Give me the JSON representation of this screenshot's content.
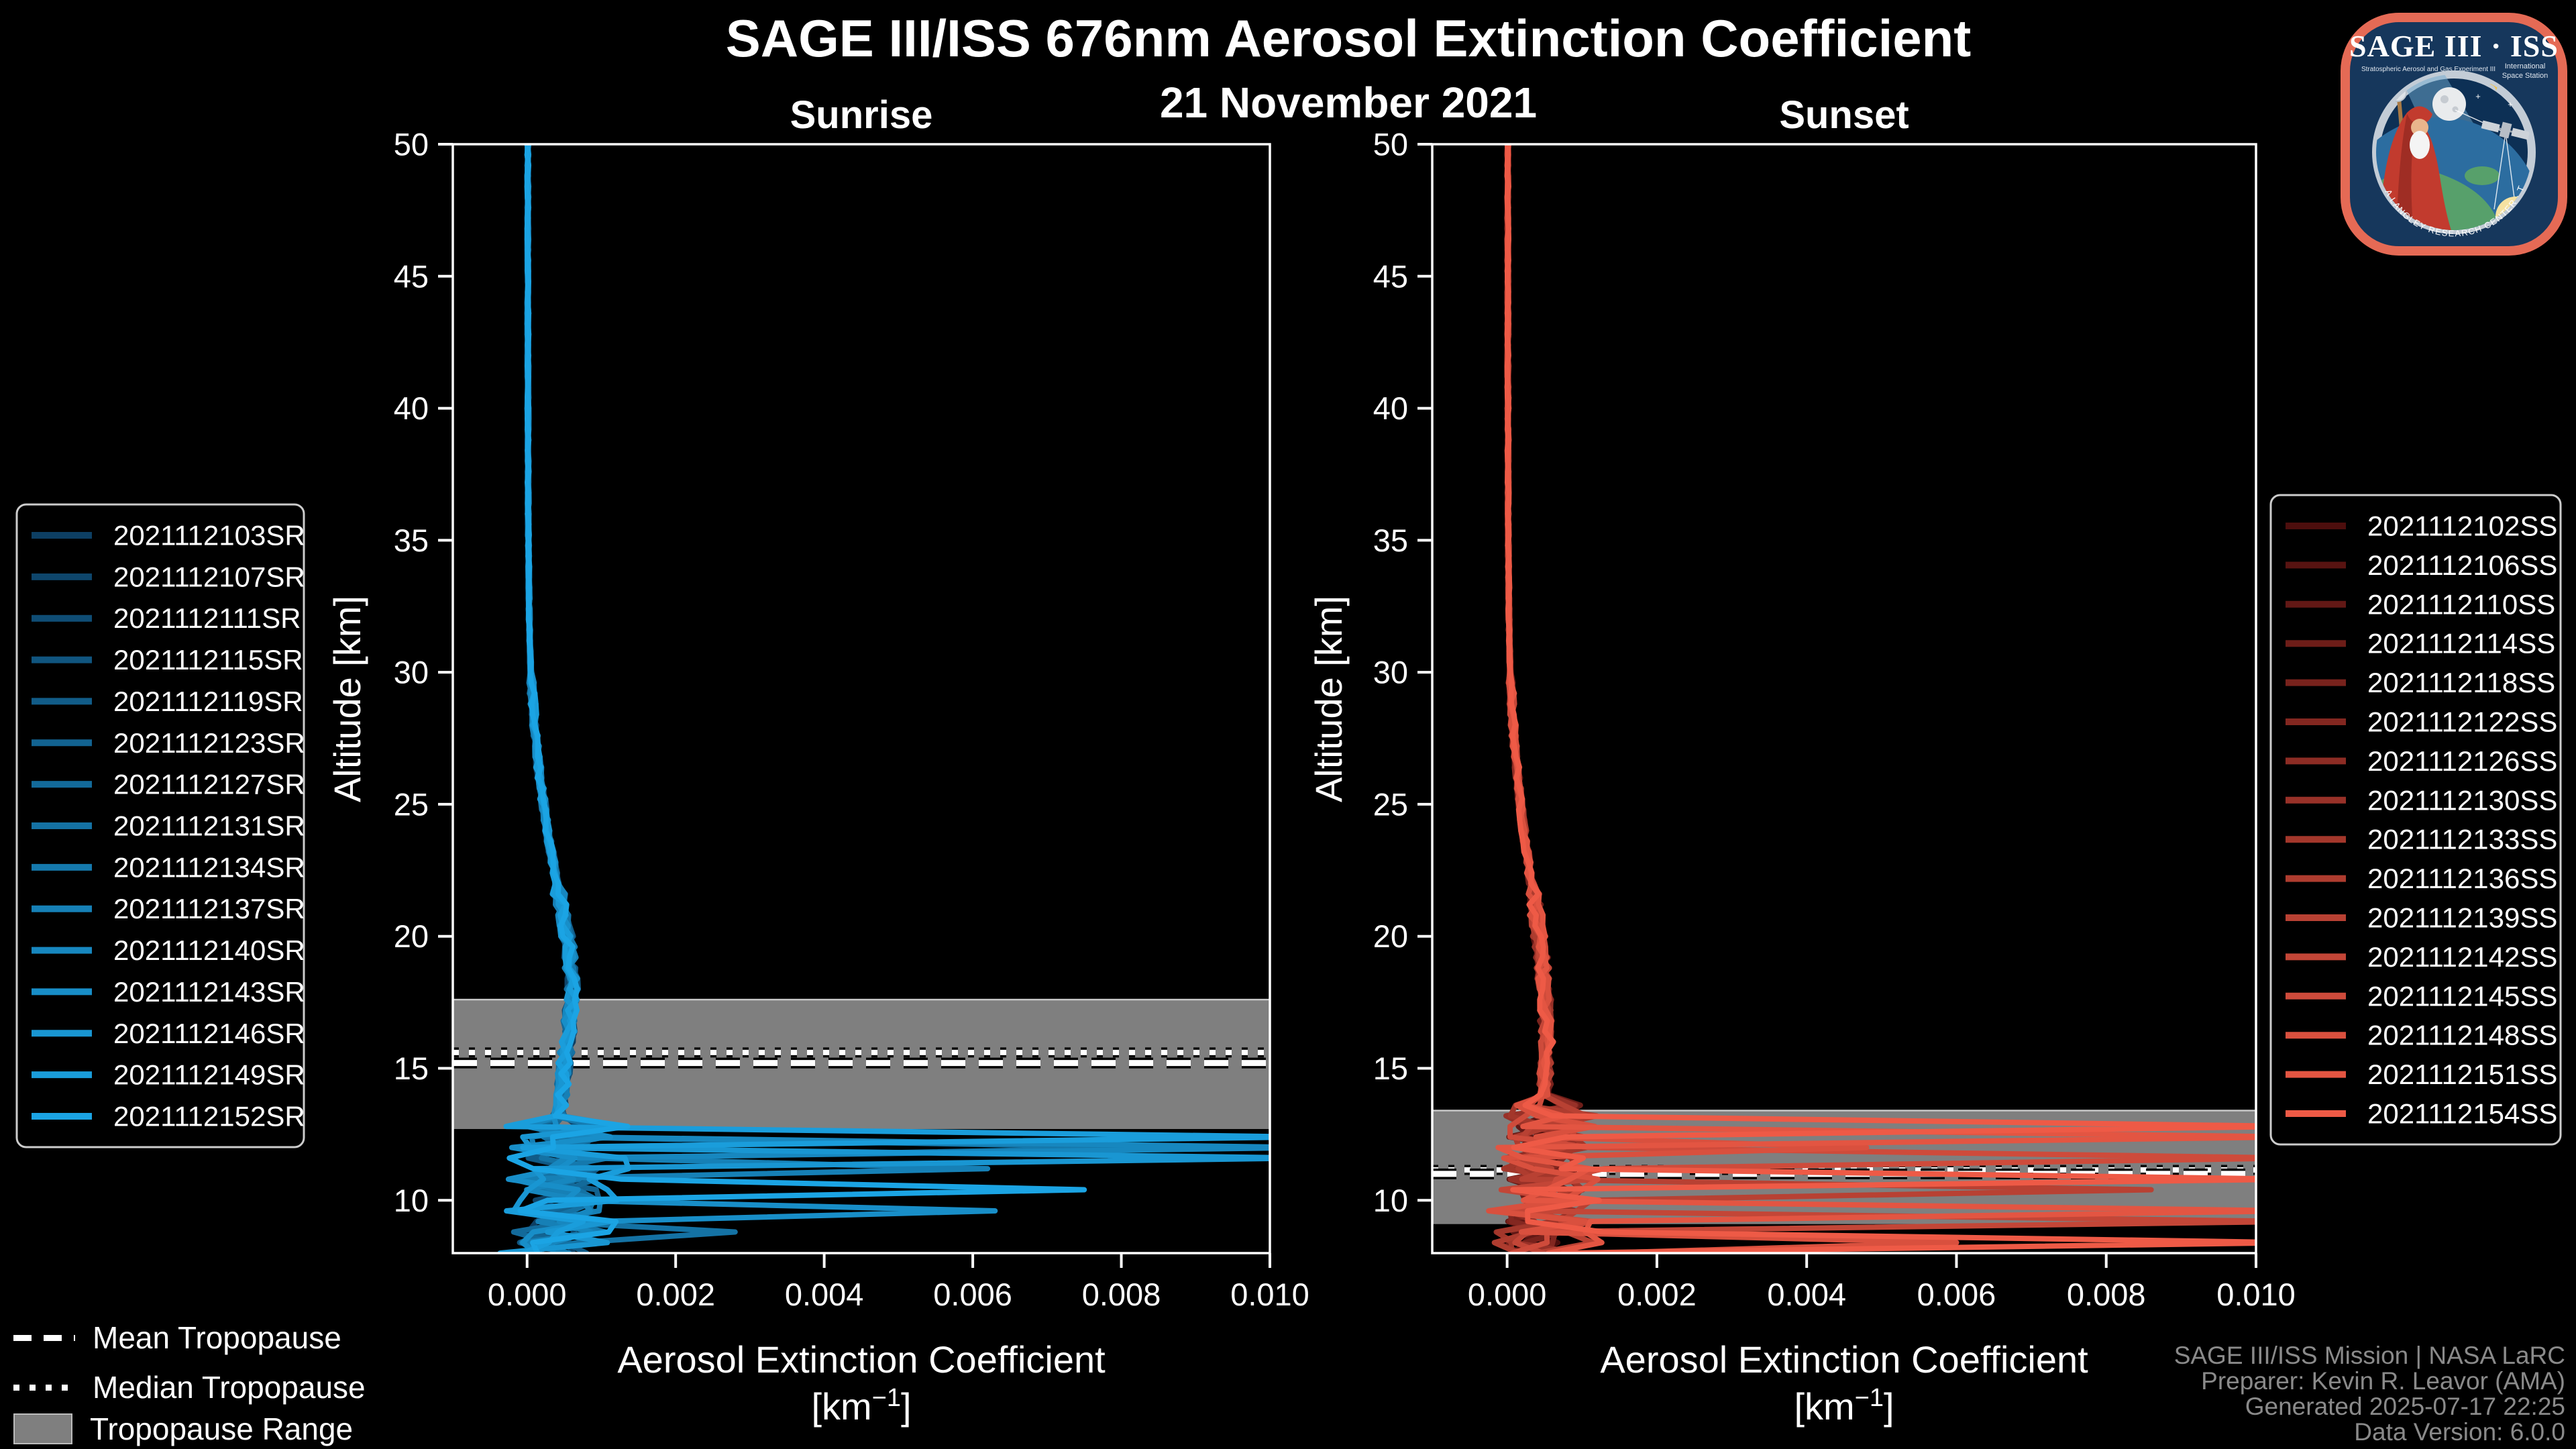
{
  "title": "SAGE III/ISS 676nm Aerosol Extinction Coefficient",
  "subtitle": "21 November 2021",
  "credits": {
    "line1": "SAGE III/ISS Mission | NASA LaRC",
    "line2": "Preparer: Kevin R. Leavor (AMA)",
    "line3": "Generated 2025-07-17 22:25",
    "line4": "Data Version: 6.0.0"
  },
  "tropopause_legend": {
    "mean": "Mean Tropopause",
    "median": "Median Tropopause",
    "range": "Tropopause Range"
  },
  "logo": {
    "title": "SAGE III · ISS",
    "tagline": "Stratospheric Aerosol and Gas Experiment III",
    "right1": "International",
    "right2": "Space Station",
    "ring_text": "BALL · NASA LANGLEY RESEARCH CENTER · TAS-I · ESA"
  },
  "colors": {
    "background": "#000000",
    "axis": "#ffffff",
    "tick_text": "#ffffff",
    "tropopause_band": "#7f7f7f",
    "tropopause_band_edge": "#c8c8c8",
    "tropopause_line": "#ffffff",
    "credit_text": "#8a8a8a",
    "legend_border": "#cccccc",
    "sunrise_start": "#0d3f63",
    "sunrise_end": "#1ba4e4",
    "sunset_start": "#4d0e0d",
    "sunset_end": "#ee5a46"
  },
  "chart_data": [
    {
      "type": "line",
      "panel": "sunrise",
      "title": "Sunrise",
      "xlabel": "Aerosol Extinction Coefficient",
      "xlabel_unit": "[km⁻¹]",
      "unit_prefix": "[km",
      "unit_sup": "−1",
      "unit_suffix": "]",
      "ylabel": "Altitude [km]",
      "xlim": [
        -0.001,
        0.01
      ],
      "ylim": [
        8,
        50
      ],
      "xticks": [
        0,
        0.002,
        0.004,
        0.006,
        0.008,
        0.01
      ],
      "xtick_labels": [
        "0.000",
        "0.002",
        "0.004",
        "0.006",
        "0.008",
        "0.010"
      ],
      "yticks": [
        10,
        15,
        20,
        25,
        30,
        35,
        40,
        45,
        50
      ],
      "grid": false,
      "legend_position": "left",
      "color_start": "#0d3f63",
      "color_end": "#1ba4e4",
      "series": [
        "2021112103SR",
        "2021112107SR",
        "2021112111SR",
        "2021112115SR",
        "2021112119SR",
        "2021112123SR",
        "2021112127SR",
        "2021112131SR",
        "2021112134SR",
        "2021112137SR",
        "2021112140SR",
        "2021112143SR",
        "2021112146SR",
        "2021112149SR",
        "2021112152SR"
      ],
      "profile": {
        "altitudes": [
          50,
          45,
          40,
          35,
          32,
          30,
          28,
          26,
          24,
          22,
          21,
          20,
          19,
          18,
          17,
          16,
          15,
          14,
          13.5,
          13.2,
          13,
          12,
          11,
          10,
          9,
          8
        ],
        "values": [
          1e-05,
          1e-05,
          1.2e-05,
          1.8e-05,
          3e-05,
          5e-05,
          0.0001,
          0.00017,
          0.00027,
          0.0004,
          0.00047,
          0.00054,
          0.00058,
          0.0006,
          0.00058,
          0.00054,
          0.0005,
          0.00046,
          0.00044,
          0.00042,
          0.0004,
          0.0004,
          0.00038,
          0.00035,
          0.0003,
          0.00028
        ]
      },
      "chaos_below_km": 13.2,
      "spikes": [
        [
          13,
          12.5,
          0.0105
        ],
        [
          8,
          12.15,
          0.0086
        ],
        [
          10,
          11.9,
          0.0105
        ],
        [
          12,
          11.5,
          0.0105
        ],
        [
          9,
          11.15,
          0.0062
        ],
        [
          14,
          10.6,
          0.0075
        ],
        [
          11,
          9.5,
          0.0063
        ],
        [
          7,
          8.8,
          0.0028
        ]
      ],
      "tropopause": {
        "mean_km": 15.2,
        "median_km": 15.6,
        "range_km": [
          12.7,
          17.6
        ]
      }
    },
    {
      "type": "line",
      "panel": "sunset",
      "title": "Sunset",
      "xlabel": "Aerosol Extinction Coefficient",
      "xlabel_unit": "[km⁻¹]",
      "unit_prefix": "[km",
      "unit_sup": "−1",
      "unit_suffix": "]",
      "ylabel": "Altitude [km]",
      "xlim": [
        -0.001,
        0.01
      ],
      "ylim": [
        8,
        50
      ],
      "xticks": [
        0,
        0.002,
        0.004,
        0.006,
        0.008,
        0.01
      ],
      "xtick_labels": [
        "0.000",
        "0.002",
        "0.004",
        "0.006",
        "0.008",
        "0.010"
      ],
      "yticks": [
        10,
        15,
        20,
        25,
        30,
        35,
        40,
        45,
        50
      ],
      "grid": false,
      "legend_position": "right",
      "color_start": "#4d0e0d",
      "color_end": "#ee5a46",
      "series": [
        "2021112102SS",
        "2021112106SS",
        "2021112110SS",
        "2021112114SS",
        "2021112118SS",
        "2021112122SS",
        "2021112126SS",
        "2021112130SS",
        "2021112133SS",
        "2021112136SS",
        "2021112139SS",
        "2021112142SS",
        "2021112145SS",
        "2021112148SS",
        "2021112151SS",
        "2021112154SS"
      ],
      "profile": {
        "altitudes": [
          50,
          45,
          40,
          35,
          32,
          30,
          28,
          26,
          24,
          22,
          21,
          20,
          19,
          18,
          17,
          16,
          15,
          14,
          13.8,
          13.5,
          13,
          12,
          11,
          10,
          9,
          8
        ],
        "values": [
          1e-05,
          1e-05,
          1.2e-05,
          1.6e-05,
          2.5e-05,
          4e-05,
          8e-05,
          0.00014,
          0.00022,
          0.00032,
          0.00038,
          0.00043,
          0.00047,
          0.0005,
          0.00052,
          0.00053,
          0.00052,
          0.0005,
          0.00048,
          0.00046,
          0.00042,
          0.0004,
          0.00038,
          0.00035,
          0.00032,
          0.0003
        ]
      },
      "chaos_below_km": 13.8,
      "spikes": [
        [
          15,
          13.0,
          0.0105
        ],
        [
          14,
          12.45,
          0.0105
        ],
        [
          13,
          11.85,
          0.0048
        ],
        [
          12,
          11.5,
          0.0105
        ],
        [
          15,
          10.9,
          0.0105
        ],
        [
          10,
          10.4,
          0.0086
        ],
        [
          14,
          9.8,
          0.0105
        ],
        [
          11,
          9.2,
          0.0105
        ],
        [
          13,
          8.6,
          0.006
        ],
        [
          15,
          8.3,
          0.0105
        ]
      ],
      "tropopause": {
        "mean_km": 11.0,
        "median_km": 11.15,
        "range_km": [
          9.1,
          13.4
        ]
      }
    }
  ]
}
